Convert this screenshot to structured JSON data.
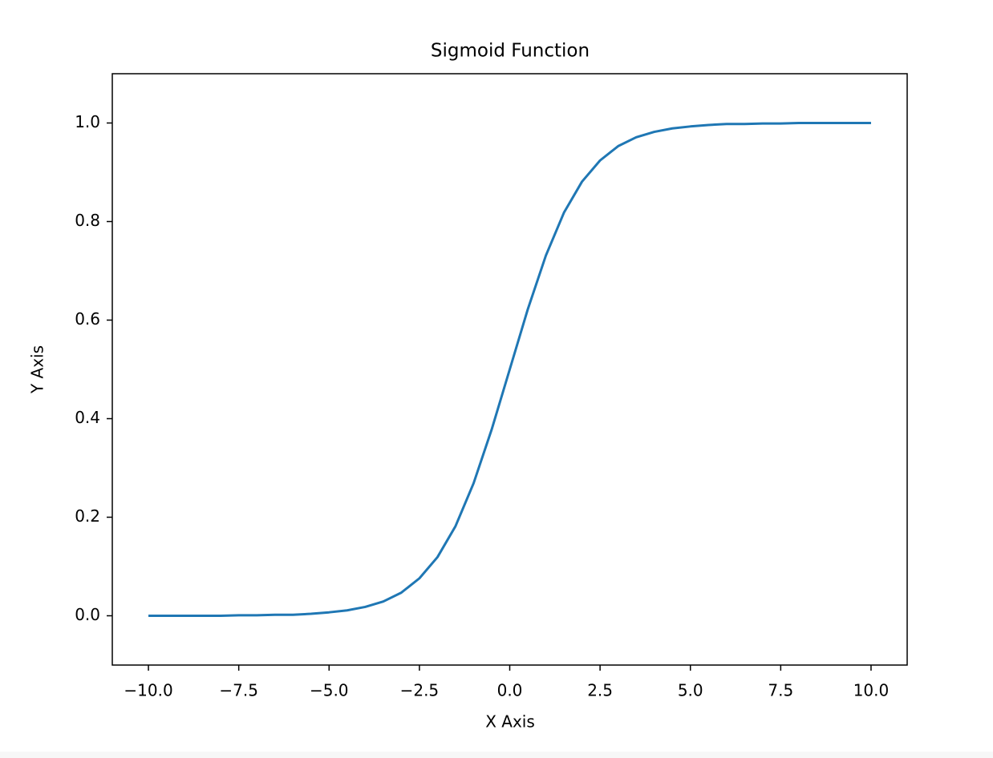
{
  "chart_data": {
    "type": "line",
    "title": "Sigmoid Function",
    "xlabel": "X Axis",
    "ylabel": "Y Axis",
    "x": [
      -10,
      -9.5,
      -9,
      -8.5,
      -8,
      -7.5,
      -7,
      -6.5,
      -6,
      -5.5,
      -5,
      -4.5,
      -4,
      -3.5,
      -3,
      -2.5,
      -2,
      -1.5,
      -1,
      -0.5,
      0,
      0.5,
      1,
      1.5,
      2,
      2.5,
      3,
      3.5,
      4,
      4.5,
      5,
      5.5,
      6,
      6.5,
      7,
      7.5,
      8,
      8.5,
      9,
      9.5,
      10
    ],
    "series": [
      {
        "color": "#1f77b4",
        "values": [
          0.0,
          0.0,
          0.0,
          0.0,
          0.0,
          0.001,
          0.001,
          0.002,
          0.002,
          0.004,
          0.007,
          0.011,
          0.018,
          0.029,
          0.047,
          0.076,
          0.119,
          0.182,
          0.269,
          0.378,
          0.5,
          0.622,
          0.731,
          0.818,
          0.881,
          0.924,
          0.953,
          0.971,
          0.982,
          0.989,
          0.993,
          0.996,
          0.998,
          0.998,
          0.999,
          0.999,
          1.0,
          1.0,
          1.0,
          1.0,
          1.0
        ]
      }
    ],
    "xlim": [
      -11,
      11
    ],
    "xticks": [
      {
        "value": -10,
        "label": "−10.0"
      },
      {
        "value": -7.5,
        "label": "−7.5"
      },
      {
        "value": -5,
        "label": "−5.0"
      },
      {
        "value": -2.5,
        "label": "−2.5"
      },
      {
        "value": 0,
        "label": "0.0"
      },
      {
        "value": 2.5,
        "label": "2.5"
      },
      {
        "value": 5,
        "label": "5.0"
      },
      {
        "value": 7.5,
        "label": "7.5"
      },
      {
        "value": 10,
        "label": "10.0"
      }
    ],
    "ylim": [
      -0.1,
      1.1
    ],
    "yticks": [
      {
        "value": 0,
        "label": "0.0"
      },
      {
        "value": 0.2,
        "label": "0.2"
      },
      {
        "value": 0.4,
        "label": "0.4"
      },
      {
        "value": 0.6,
        "label": "0.6"
      },
      {
        "value": 0.8,
        "label": "0.8"
      },
      {
        "value": 1,
        "label": "1.0"
      }
    ],
    "grid": false
  }
}
